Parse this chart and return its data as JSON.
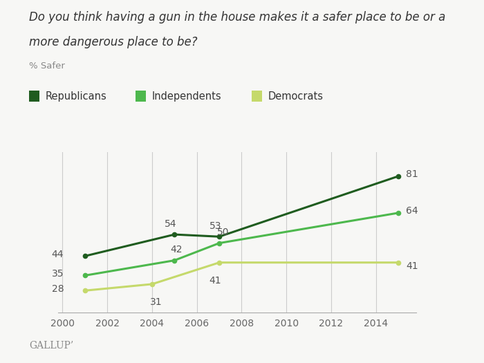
{
  "title_line1": "Do you think having a gun in the house makes it a safer place to be or a",
  "title_line2": "more dangerous place to be?",
  "ylabel": "% Safer",
  "gallup_label": "GALLUP’",
  "series": [
    {
      "name": "Republicans",
      "color": "#1f5c1f",
      "years": [
        2001,
        2005,
        2007,
        2015
      ],
      "values": [
        44,
        54,
        53,
        81
      ]
    },
    {
      "name": "Independents",
      "color": "#4db84d",
      "years": [
        2001,
        2005,
        2007,
        2015
      ],
      "values": [
        35,
        42,
        50,
        64
      ]
    },
    {
      "name": "Democrats",
      "color": "#c5d96b",
      "years": [
        2001,
        2004,
        2007,
        2015
      ],
      "values": [
        28,
        31,
        41,
        41
      ]
    }
  ],
  "xlim": [
    1999.8,
    2015.8
  ],
  "ylim": [
    18,
    92
  ],
  "xticks": [
    2000,
    2002,
    2004,
    2006,
    2008,
    2010,
    2012,
    2014
  ],
  "background_color": "#f7f7f5",
  "grid_color": "#cccccc",
  "label_fontsize": 10,
  "tick_fontsize": 10,
  "title_fontsize": 12
}
